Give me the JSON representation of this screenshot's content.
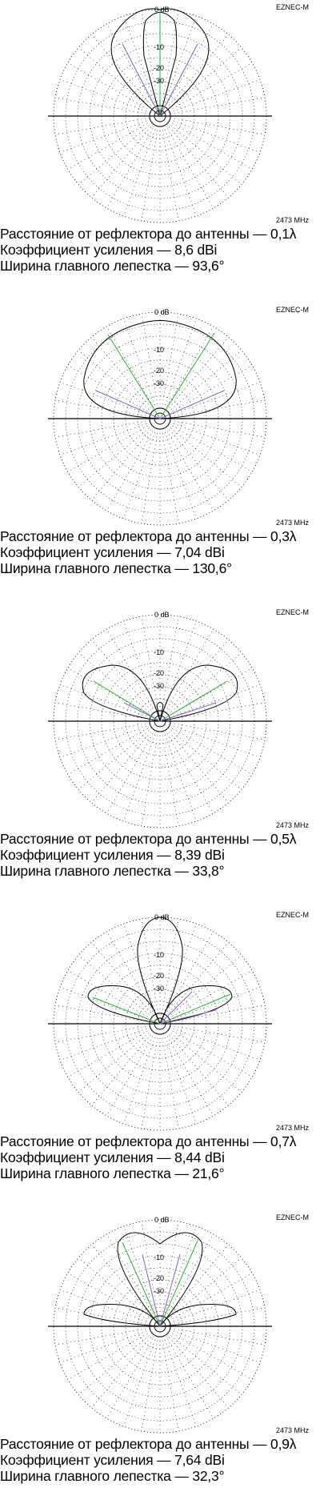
{
  "panels": [
    {
      "brand": "EZNEC-M",
      "frequency": "2473 MHz",
      "ring_labels": [
        "0 dB",
        "-10",
        "-20",
        "-30"
      ],
      "lines": [
        "Расстояние от рефлектора до антенны — 0,1λ",
        "Коэффициент усиления   — 8,6 dBi",
        "Ширина главного лепестка — 93,6°"
      ]
    },
    {
      "brand": "EZNEC-M",
      "frequency": "2473 MHz",
      "ring_labels": [
        "0 dB",
        "-10",
        "-20",
        "-30"
      ],
      "lines": [
        "Расстояние от рефлектора до антенны — 0,3λ",
        "Коэффициент усиления   — 7,04 dBi",
        "Ширина главного лепестка — 130,6°"
      ]
    },
    {
      "brand": "EZNEC-M",
      "frequency": "2473 MHz",
      "ring_labels": [
        "0 dB",
        "-10",
        "-20",
        "-30"
      ],
      "lines": [
        "Расстояние от рефлектора до антенны — 0,5λ",
        "Коэффициент усиления   — 8,39 dBi",
        "Ширина главного лепестка — 33,8°"
      ]
    },
    {
      "brand": "EZNEC-M",
      "frequency": "2473 MHz",
      "ring_labels": [
        "0 dB",
        "-10",
        "-20",
        "-30"
      ],
      "lines": [
        "Расстояние от рефлектора до антенны — 0,7λ",
        "Коэффициент усиления   — 8,44 dBi",
        "Ширина главного лепестка — 21,6°"
      ]
    },
    {
      "brand": "EZNEC-M",
      "frequency": "2473 MHz",
      "ring_labels": [
        "0 dB",
        "-10",
        "-20",
        "-30"
      ],
      "lines": [
        "Расстояние от рефлектора до антенны — 0,9λ",
        "Коэффициент усиления   — 7,64 dBi",
        "Ширина главного лепестка — 32,3°"
      ]
    }
  ]
}
